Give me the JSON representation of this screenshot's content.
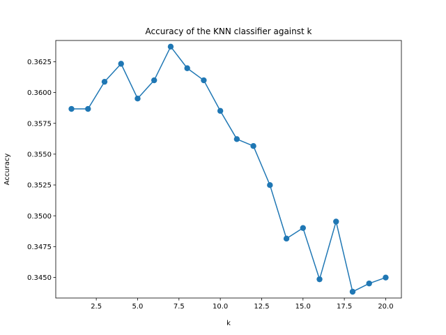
{
  "chart_data": {
    "type": "line",
    "title": "Accuracy of the KNN classifier against k",
    "xlabel": "k",
    "ylabel": "Accuracy",
    "xlim": [
      0.05,
      20.95
    ],
    "ylim": [
      0.34333,
      0.36422
    ],
    "grid": false,
    "legend": "none",
    "x_ticks": [
      2.5,
      5.0,
      7.5,
      10.0,
      12.5,
      15.0,
      17.5,
      20.0
    ],
    "x_tick_labels": [
      "2.5",
      "5.0",
      "7.5",
      "10.0",
      "12.5",
      "15.0",
      "17.5",
      "20.0"
    ],
    "y_ticks": [
      0.345,
      0.3475,
      0.35,
      0.3525,
      0.355,
      0.3575,
      0.36,
      0.3625
    ],
    "y_tick_labels": [
      "0.3450",
      "0.3475",
      "0.3500",
      "0.3525",
      "0.3550",
      "0.3575",
      "0.3600",
      "0.3625"
    ],
    "series": [
      {
        "color": "#1f77b4",
        "marker": "circle",
        "x": [
          1,
          2,
          3,
          4,
          5,
          6,
          7,
          8,
          9,
          10,
          11,
          12,
          13,
          14,
          15,
          16,
          17,
          18,
          19,
          20
        ],
        "y": [
          0.35867,
          0.35867,
          0.36087,
          0.36233,
          0.35951,
          0.36099,
          0.36372,
          0.36197,
          0.36099,
          0.35851,
          0.35622,
          0.35566,
          0.35249,
          0.34815,
          0.34901,
          0.34485,
          0.34953,
          0.34384,
          0.34451,
          0.34499
        ]
      }
    ]
  }
}
